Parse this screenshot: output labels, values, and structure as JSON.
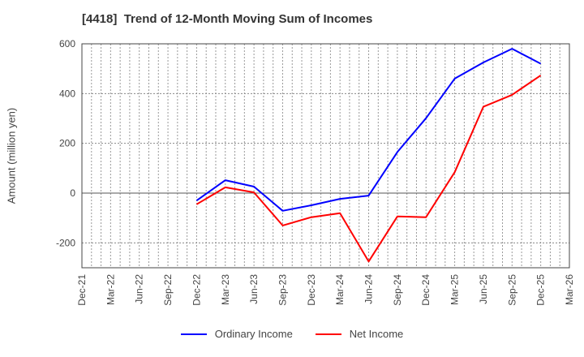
{
  "chart_data": {
    "type": "line",
    "title": "[4418]  Trend of 12-Month Moving Sum of Incomes",
    "xlabel": "",
    "ylabel": "Amount (million yen)",
    "ylim": [
      -300,
      600
    ],
    "yticks": [
      -200,
      0,
      200,
      400,
      600
    ],
    "xticks": [
      "Dec-21",
      "Mar-22",
      "Jun-22",
      "Sep-22",
      "Dec-22",
      "Mar-23",
      "Jun-23",
      "Sep-23",
      "Dec-23",
      "Mar-24",
      "Jun-24",
      "Sep-24",
      "Dec-24",
      "Mar-25",
      "Jun-25",
      "Sep-25",
      "Dec-25",
      "Mar-26"
    ],
    "grid": true,
    "legend_position": "bottom",
    "x": [
      "Dec-22",
      "Mar-23",
      "Jun-23",
      "Sep-23",
      "Dec-23",
      "Mar-24",
      "Jun-24",
      "Sep-24",
      "Dec-24",
      "Mar-25",
      "Jun-25",
      "Sep-25",
      "Dec-25"
    ],
    "series": [
      {
        "name": "Ordinary Income",
        "color": "#0000ff",
        "values": [
          -30,
          52,
          26,
          -71,
          -49,
          -23,
          -10,
          165,
          301,
          460,
          525,
          580,
          520
        ]
      },
      {
        "name": "Net Income",
        "color": "#ff0000",
        "values": [
          -45,
          23,
          3,
          -130,
          -97,
          -81,
          -275,
          -94,
          -97,
          84,
          347,
          395,
          473
        ]
      }
    ]
  },
  "legend": {
    "items": [
      {
        "label": "Ordinary Income",
        "color": "#0000ff"
      },
      {
        "label": "Net Income",
        "color": "#ff0000"
      }
    ]
  }
}
